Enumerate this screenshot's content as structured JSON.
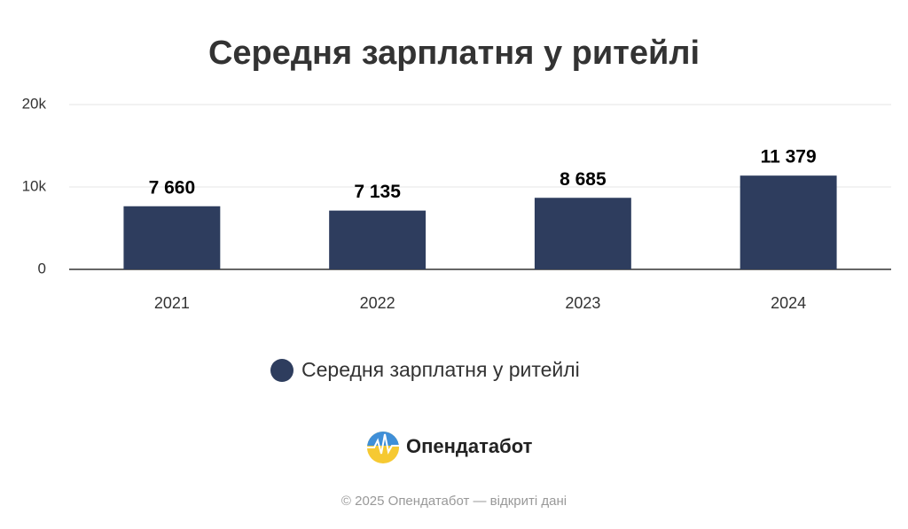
{
  "chart_data": {
    "type": "bar",
    "title": "Середня зарплатня у ритейлі",
    "categories": [
      "2021",
      "2022",
      "2023",
      "2024"
    ],
    "series": [
      {
        "name": "Середня зарплатня у ритейлі",
        "color": "#2e3d5e",
        "values": [
          7660,
          7135,
          8685,
          11379
        ],
        "value_labels": [
          "7 660",
          "7 135",
          "8 685",
          "11 379"
        ]
      }
    ],
    "ylim": [
      0,
      20000
    ],
    "yticks": [
      0,
      {
        "value": 10000,
        "label": "10k"
      },
      {
        "value": 20000,
        "label": "20k"
      }
    ],
    "grid": true,
    "legend": "bottom"
  },
  "branding": {
    "logo_text": "Опендатабот",
    "footer": "© 2025 Опендатабот — відкриті дані"
  }
}
